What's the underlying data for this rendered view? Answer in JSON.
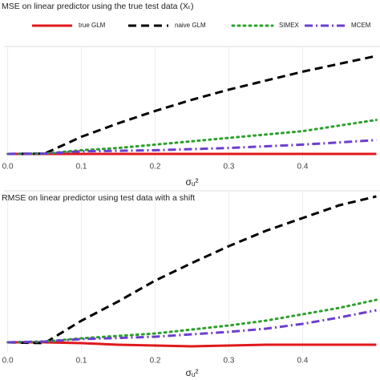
{
  "chart_data": [
    {
      "type": "line",
      "title": "MSE on linear predictor using the true test data (Xₜ)",
      "x_label": "σᵤ²",
      "x": [
        0,
        0.05,
        0.1,
        0.15,
        0.2,
        0.25,
        0.3,
        0.35,
        0.4,
        0.45,
        0.5
      ],
      "xlim": [
        -0.005,
        0.505
      ],
      "xticks": [
        {
          "value": 0,
          "label": "0.0"
        },
        0.1,
        0.2,
        0.3,
        0.4
      ],
      "ylim": [
        0,
        1
      ],
      "yticks": [],
      "grid": true,
      "series": [
        {
          "name": "true GLM",
          "color": "#e0191c",
          "dash": "solid",
          "values": [
            0.057,
            0.057,
            0.057,
            0.057,
            0.057,
            0.057,
            0.057,
            0.057,
            0.057,
            0.057,
            0.057
          ]
        },
        {
          "name": "naive GLM",
          "color": "#000000",
          "dash": "dashed",
          "values": [
            0.057,
            0.06,
            0.21,
            0.33,
            0.44,
            0.54,
            0.63,
            0.71,
            0.79,
            0.86,
            0.93
          ]
        },
        {
          "name": "SIMEX",
          "color": "#2ca02c",
          "dash": "dotted",
          "values": [
            0.057,
            0.06,
            0.09,
            0.11,
            0.14,
            0.17,
            0.2,
            0.23,
            0.26,
            0.31,
            0.36
          ]
        },
        {
          "name": "MCEM",
          "color": "#6a3fd0",
          "dash": "dashdot",
          "values": [
            0.057,
            0.06,
            0.08,
            0.085,
            0.09,
            0.1,
            0.11,
            0.125,
            0.14,
            0.16,
            0.18
          ]
        }
      ]
    },
    {
      "type": "line",
      "title": "RMSE on linear predictor using test data with a shift",
      "x_label": "σᵤ²",
      "x": [
        0,
        0.05,
        0.1,
        0.15,
        0.2,
        0.25,
        0.3,
        0.35,
        0.4,
        0.45,
        0.5
      ],
      "xlim": [
        -0.005,
        0.505
      ],
      "xticks": [
        {
          "value": 0,
          "label": "0.0"
        },
        0.1,
        0.2,
        0.3,
        0.4
      ],
      "ylim": [
        0,
        1
      ],
      "yticks": [],
      "grid": true,
      "series": [
        {
          "color": "#e0191c",
          "dash": "solid",
          "values": [
            0.065,
            0.065,
            0.06,
            0.05,
            0.045,
            0.04,
            0.045,
            0.05,
            0.05,
            0.05,
            0.05
          ]
        },
        {
          "color": "#000000",
          "dash": "dashed",
          "values": [
            0.065,
            0.06,
            0.2,
            0.32,
            0.45,
            0.56,
            0.665,
            0.76,
            0.84,
            0.92,
            0.975
          ]
        },
        {
          "color": "#2ca02c",
          "dash": "dotted",
          "values": [
            0.065,
            0.07,
            0.09,
            0.105,
            0.12,
            0.145,
            0.17,
            0.2,
            0.24,
            0.28,
            0.33
          ]
        },
        {
          "color": "#6a3fd0",
          "dash": "dashdot",
          "values": [
            0.065,
            0.07,
            0.085,
            0.092,
            0.1,
            0.115,
            0.13,
            0.15,
            0.18,
            0.22,
            0.265
          ]
        }
      ]
    }
  ]
}
